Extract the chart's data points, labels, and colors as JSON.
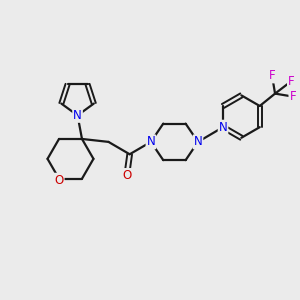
{
  "bg_color": "#ebebeb",
  "bond_color": "#1a1a1a",
  "N_color": "#0000ee",
  "O_color": "#cc0000",
  "F_color": "#cc00cc",
  "line_width": 1.6,
  "double_lw": 1.4,
  "font_size_atom": 8.5,
  "figsize": [
    3.0,
    3.0
  ],
  "dpi": 100,
  "xlim": [
    0,
    10
  ],
  "ylim": [
    0,
    10
  ]
}
